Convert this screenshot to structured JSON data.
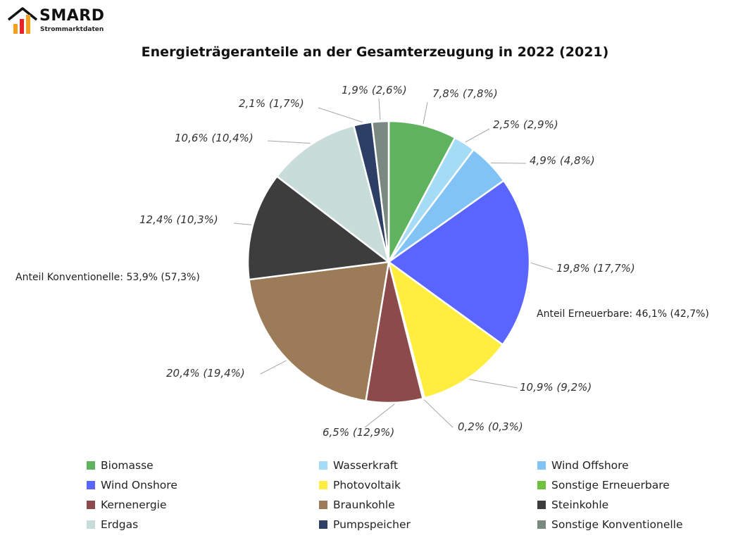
{
  "logo": {
    "brand": "SMARD",
    "subtitle": "Strommarktdaten",
    "bar_colors": [
      "#f5a01a",
      "#e8222a",
      "#f5a01a"
    ]
  },
  "chart_data": {
    "type": "pie",
    "title": "Energieträgeranteile an der Gesamterzeugung in 2022 (2021)",
    "slices": [
      {
        "name": "Biomasse",
        "value": 7.8,
        "value_prev": 7.8,
        "color": "#5fb35f",
        "label": "7,8% (7,8%)"
      },
      {
        "name": "Wasserkraft",
        "value": 2.5,
        "value_prev": 2.9,
        "color": "#a5dcf5",
        "label": "2,5% (2,9%)"
      },
      {
        "name": "Wind Offshore",
        "value": 4.9,
        "value_prev": 4.8,
        "color": "#82c3f5",
        "label": "4,9% (4,8%)"
      },
      {
        "name": "Wind Onshore",
        "value": 19.8,
        "value_prev": 17.7,
        "color": "#5a64ff",
        "label": "19,8% (17,7%)"
      },
      {
        "name": "Photovoltaik",
        "value": 10.9,
        "value_prev": 9.2,
        "color": "#ffee40",
        "label": "10,9% (9,2%)"
      },
      {
        "name": "Sonstige Erneuerbare",
        "value": 0.2,
        "value_prev": 0.3,
        "color": "#70c040",
        "label": "0,2% (0,3%)"
      },
      {
        "name": "Kernenergie",
        "value": 6.5,
        "value_prev": 12.9,
        "color": "#8c4a4a",
        "label": "6,5% (12,9%)"
      },
      {
        "name": "Braunkohle",
        "value": 20.4,
        "value_prev": 19.4,
        "color": "#9b7b58",
        "label": "20,4% (19,4%)"
      },
      {
        "name": "Steinkohle",
        "value": 12.4,
        "value_prev": 10.3,
        "color": "#3d3d3d",
        "label": "12,4% (10,3%)"
      },
      {
        "name": "Erdgas",
        "value": 10.6,
        "value_prev": 10.4,
        "color": "#c8dcd9",
        "label": "10,6% (10,4%)"
      },
      {
        "name": "Pumpspeicher",
        "value": 2.1,
        "value_prev": 1.7,
        "color": "#2e3f66",
        "label": "2,1% (1,7%)"
      },
      {
        "name": "Sonstige Konventionelle",
        "value": 1.9,
        "value_prev": 2.6,
        "color": "#7a8a80",
        "label": "1,9% (2,6%)"
      }
    ],
    "group_labels": {
      "renewable": "Anteil Erneuerbare: 46,1% (42,7%)",
      "conventional": "Anteil Konventionelle: 53,9% (57,3%)"
    },
    "legend_placement": "bottom",
    "legend_order": [
      "Biomasse",
      "Wasserkraft",
      "Wind Offshore",
      "Wind Onshore",
      "Photovoltaik",
      "Sonstige Erneuerbare",
      "Kernenergie",
      "Braunkohle",
      "Steinkohle",
      "Erdgas",
      "Pumpspeicher",
      "Sonstige Konventionelle"
    ]
  }
}
